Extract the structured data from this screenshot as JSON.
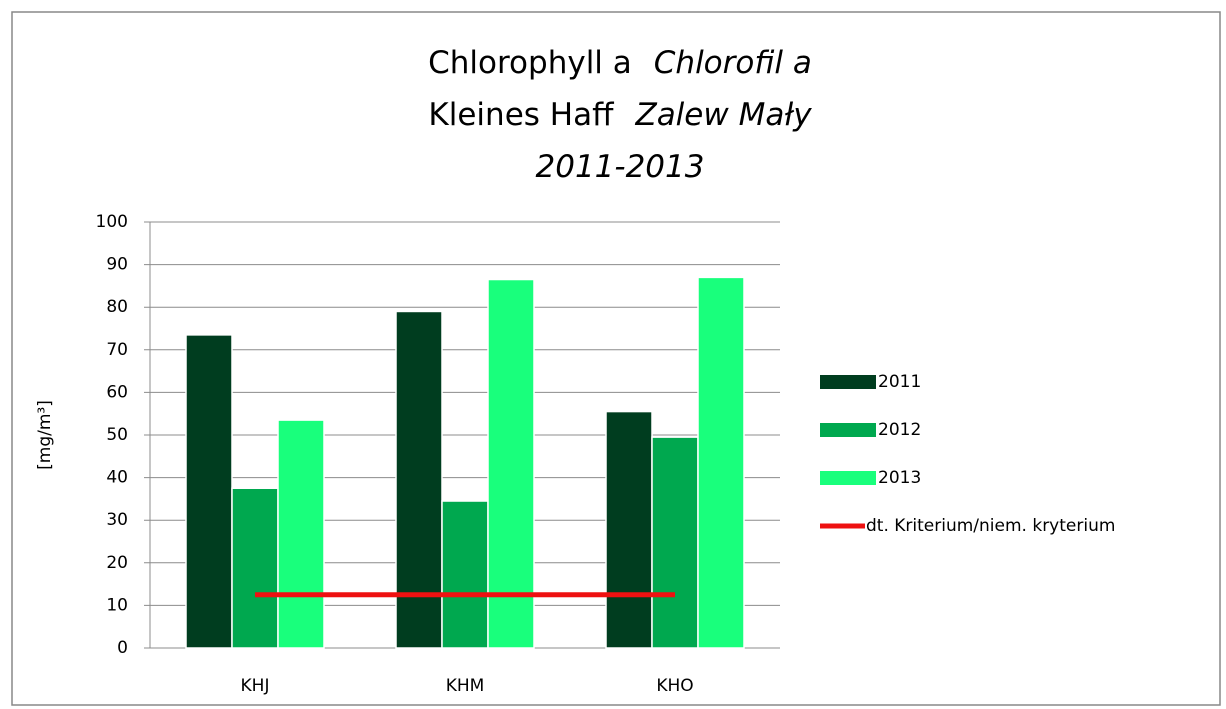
{
  "chart_data": {
    "type": "bar",
    "title_lines": [
      [
        "Chlorophyll a",
        "Chlorofil a"
      ],
      [
        "Kleines Haff",
        "Zalew Mały"
      ],
      [
        "2011-2013"
      ]
    ],
    "y_label": "[mg/m³]",
    "categories": [
      "KHJ",
      "KHM",
      "KHO"
    ],
    "series": [
      {
        "name": "2011",
        "color": "#003d1f",
        "values": [
          73.5,
          79,
          55.5
        ]
      },
      {
        "name": "2012",
        "color": "#00a84f",
        "values": [
          37.5,
          34.5,
          49.5
        ]
      },
      {
        "name": "2013",
        "color": "#19ff7c",
        "values": [
          53.5,
          86.5,
          87
        ]
      },
      {
        "name": "dt. Kriterium/niem. kryterium",
        "type": "line",
        "color": "#ee1111",
        "values": [
          12.5,
          12.5,
          12.5
        ]
      }
    ],
    "ylim": [
      0,
      100
    ],
    "yticks": [
      0,
      10,
      20,
      30,
      40,
      50,
      60,
      70,
      80,
      90,
      100
    ],
    "grid": true
  }
}
